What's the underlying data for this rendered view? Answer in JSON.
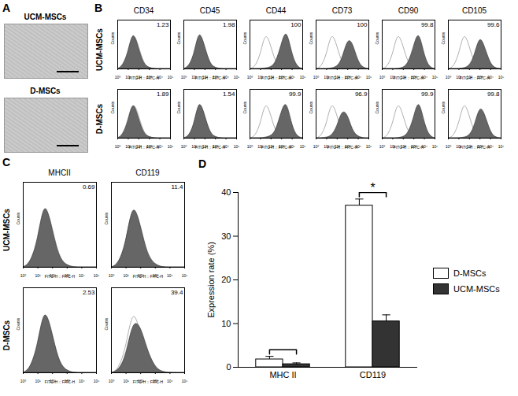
{
  "image_panel": {
    "panel": "A",
    "labels": [
      "UCM-MSCs",
      "D-MSCs"
    ]
  },
  "chart_data": [
    {
      "panel": "B",
      "type": "area",
      "rows": [
        "UCM-MSCs",
        "D-MSCs"
      ],
      "columns": [
        "CD34",
        "CD45",
        "CD44",
        "CD73",
        "CD90",
        "CD105"
      ],
      "x": [
        1,
        3,
        10,
        30,
        100,
        300,
        1000,
        3000,
        10000,
        30000,
        100000
      ],
      "cells": [
        [
          {
            "percent": 1.23,
            "filled": [
              0,
              5,
              32,
              82,
              42,
              9,
              2,
              0,
              0,
              0,
              0
            ],
            "open": [
              0,
              4,
              30,
              80,
              45,
              10,
              2,
              0,
              0,
              0,
              0
            ]
          },
          {
            "percent": 1.98,
            "filled": [
              0,
              4,
              28,
              84,
              46,
              10,
              2,
              0,
              0,
              0,
              0
            ],
            "open": [
              0,
              4,
              30,
              80,
              45,
              10,
              2,
              0,
              0,
              0,
              0
            ]
          },
          {
            "percent": 100,
            "filled": [
              0,
              0,
              0,
              1,
              3,
              12,
              50,
              85,
              30,
              4,
              0
            ],
            "open": [
              0,
              4,
              30,
              80,
              45,
              10,
              2,
              0,
              0,
              0,
              0
            ]
          },
          {
            "percent": 100,
            "filled": [
              0,
              0,
              0,
              1,
              4,
              18,
              62,
              55,
              14,
              2,
              0
            ],
            "open": [
              0,
              4,
              30,
              80,
              45,
              10,
              2,
              0,
              0,
              0,
              0
            ]
          },
          {
            "percent": 99.8,
            "filled": [
              0,
              0,
              0,
              0,
              2,
              10,
              45,
              82,
              28,
              3,
              0
            ],
            "open": [
              0,
              4,
              30,
              80,
              45,
              10,
              2,
              0,
              0,
              0,
              0
            ]
          },
          {
            "percent": 99.6,
            "filled": [
              0,
              0,
              0,
              1,
              5,
              25,
              70,
              45,
              10,
              1,
              0
            ],
            "open": [
              0,
              4,
              30,
              80,
              45,
              10,
              2,
              0,
              0,
              0,
              0
            ]
          }
        ],
        [
          {
            "percent": 1.89,
            "filled": [
              0,
              5,
              34,
              80,
              40,
              9,
              2,
              0,
              0,
              0,
              0
            ],
            "open": [
              0,
              4,
              30,
              80,
              45,
              10,
              2,
              0,
              0,
              0,
              0
            ]
          },
          {
            "percent": 1.54,
            "filled": [
              0,
              3,
              27,
              83,
              47,
              11,
              2,
              0,
              0,
              0,
              0
            ],
            "open": [
              0,
              4,
              30,
              80,
              45,
              10,
              2,
              0,
              0,
              0,
              0
            ]
          },
          {
            "percent": 99.9,
            "filled": [
              0,
              0,
              0,
              1,
              4,
              14,
              55,
              80,
              25,
              3,
              0
            ],
            "open": [
              0,
              4,
              30,
              80,
              45,
              10,
              2,
              0,
              0,
              0,
              0
            ]
          },
          {
            "percent": 96.9,
            "filled": [
              0,
              0,
              1,
              4,
              22,
              58,
              50,
              14,
              3,
              0,
              0
            ],
            "open": [
              0,
              4,
              30,
              80,
              45,
              10,
              2,
              0,
              0,
              0,
              0
            ]
          },
          {
            "percent": 99.9,
            "filled": [
              0,
              0,
              0,
              0,
              2,
              9,
              40,
              84,
              32,
              4,
              0
            ],
            "open": [
              0,
              4,
              30,
              80,
              45,
              10,
              2,
              0,
              0,
              0,
              0
            ]
          },
          {
            "percent": 99.8,
            "filled": [
              0,
              0,
              0,
              1,
              4,
              22,
              68,
              50,
              12,
              1,
              0
            ],
            "open": [
              0,
              4,
              30,
              80,
              45,
              10,
              2,
              0,
              0,
              0,
              0
            ]
          }
        ]
      ],
      "xlim": [
        1,
        100000
      ],
      "xticks": [
        {
          "value": 1,
          "label": "10⁰"
        },
        {
          "value": 10,
          "label": "10¹"
        },
        {
          "value": 100,
          "label": "10²"
        },
        {
          "value": 1000,
          "label": "10³"
        },
        {
          "value": 10000,
          "label": "10⁴"
        },
        {
          "value": 100000,
          "label": "10⁵"
        }
      ],
      "ylim": [
        0,
        100
      ],
      "log": "x",
      "xlabel": "FITC-H :: FITC-H",
      "ylabel": "Counts",
      "tick_labels": "x"
    },
    {
      "panel": "C",
      "type": "area",
      "rows": [
        "UCM-MSCs",
        "D-MSCs"
      ],
      "columns": [
        "MHCII",
        "CD119"
      ],
      "x": [
        1,
        3,
        10,
        30,
        100,
        300,
        1000,
        3000,
        10000,
        30000,
        100000
      ],
      "cells": [
        [
          {
            "percent": 0.69,
            "filled": [
              0,
              4,
              30,
              84,
              44,
              10,
              2,
              0,
              0,
              0,
              0
            ],
            "open": [
              0,
              4,
              30,
              80,
              45,
              10,
              2,
              0,
              0,
              0,
              0
            ]
          },
          {
            "percent": 11.4,
            "filled": [
              0,
              3,
              26,
              80,
              50,
              14,
              3,
              0,
              0,
              0,
              0
            ],
            "open": [
              0,
              4,
              30,
              80,
              45,
              10,
              2,
              0,
              0,
              0,
              0
            ]
          }
        ],
        [
          {
            "percent": 2.53,
            "filled": [
              0,
              4,
              31,
              82,
              45,
              11,
              2,
              0,
              0,
              0,
              0
            ],
            "open": [
              0,
              4,
              30,
              80,
              45,
              10,
              2,
              0,
              0,
              0,
              0
            ]
          },
          {
            "percent": 39.4,
            "filled": [
              0,
              2,
              18,
              62,
              56,
              26,
              6,
              1,
              0,
              0,
              0
            ],
            "open": [
              0,
              4,
              30,
              80,
              45,
              10,
              2,
              0,
              0,
              0,
              0
            ]
          }
        ]
      ],
      "xlim": [
        1,
        100000
      ],
      "xticks": [
        {
          "value": 1,
          "label": "10⁰"
        },
        {
          "value": 10,
          "label": "10¹"
        },
        {
          "value": 100,
          "label": "10²"
        },
        {
          "value": 1000,
          "label": "10³"
        },
        {
          "value": 10000,
          "label": "10⁴"
        },
        {
          "value": 100000,
          "label": "10⁵"
        }
      ],
      "ylim": [
        0,
        100
      ],
      "log": "x",
      "xlabel": "FITC-H :: FITC-H",
      "ylabel": "Counts",
      "tick_labels": "x"
    },
    {
      "panel": "D",
      "type": "bar",
      "categories": [
        "MHC II",
        "CD119"
      ],
      "series": [
        {
          "name": "D-MSCs",
          "color": "#ffffff",
          "values": [
            1.8,
            37
          ],
          "errors": [
            0.7,
            1.5
          ]
        },
        {
          "name": "UCM-MSCs",
          "color": "#333333",
          "values": [
            0.7,
            10.5
          ],
          "errors": [
            0.3,
            1.5
          ]
        }
      ],
      "ylabel": "Expression rate (%)",
      "ylim": [
        0,
        40
      ],
      "yticks": [
        0,
        10,
        20,
        30,
        40
      ],
      "legend": "right",
      "brackets": [
        "MHC II",
        "CD119"
      ],
      "annotations": [
        {
          "category": "CD119",
          "text": "*"
        }
      ]
    }
  ]
}
